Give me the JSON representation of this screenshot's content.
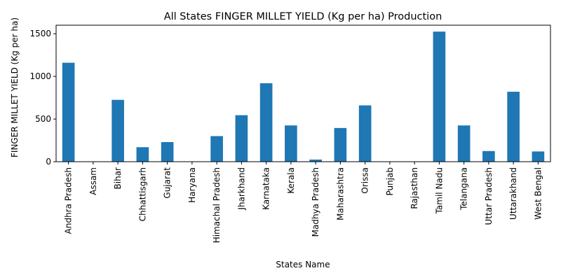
{
  "chart_data": {
    "type": "bar",
    "title": "All States FINGER MILLET YIELD (Kg per ha) Production",
    "xlabel": "States Name",
    "ylabel": "FINGER MILLET YIELD (Kg per ha)",
    "ylim": [
      0,
      1600
    ],
    "yticks": [
      "0",
      "500",
      "1000",
      "1500"
    ],
    "grid": false,
    "bar_color": "#1f77b4",
    "categories": [
      "Andhra Pradesh",
      "Assam",
      "Bihar",
      "Chhattisgarh",
      "Gujarat",
      "Haryana",
      "Himachal Pradesh",
      "Jharkhand",
      "Karnataka",
      "Kerala",
      "Madhya Pradesh",
      "Maharashtra",
      "Orissa",
      "Punjab",
      "Rajasthan",
      "Tamil Nadu",
      "Telangana",
      "Uttar Pradesh",
      "Uttarakhand",
      "West Bengal"
    ],
    "values": [
      1160,
      0,
      725,
      170,
      230,
      0,
      300,
      545,
      920,
      425,
      25,
      395,
      660,
      0,
      0,
      1525,
      425,
      125,
      820,
      120
    ]
  }
}
